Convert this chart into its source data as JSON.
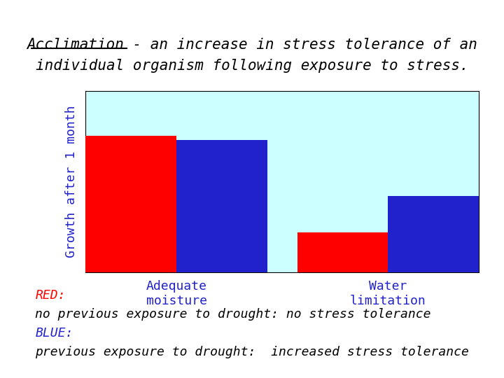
{
  "title_line1": "Acclimation - an increase in stress tolerance of an",
  "title_line2": "individual organism following exposure to stress.",
  "title_underline_word": "Acclimation",
  "ylabel": "Growth after 1 month",
  "categories": [
    "Adequate\nmoisture",
    "Water\nlimitation"
  ],
  "red_values": [
    75,
    22
  ],
  "blue_values": [
    73,
    42
  ],
  "red_color": "#FF0000",
  "blue_color": "#2222CC",
  "plot_bg_color": "#CCFFFF",
  "fig_bg_color": "#FFFFFF",
  "ylim": [
    0,
    100
  ],
  "legend_red_label": "RED:",
  "legend_blue_label": "BLUE:",
  "footnote_line1": "no previous exposure to drought: no stress tolerance",
  "footnote_line2": "previous exposure to drought:  increased stress tolerance",
  "bar_width": 0.3,
  "group_positions": [
    0.3,
    1.0
  ],
  "cat_label_color": "#2222CC",
  "ylabel_color": "#2222CC",
  "font_size_title": 15,
  "font_size_ylabel": 13,
  "font_size_cat": 13,
  "font_size_footnote": 13
}
